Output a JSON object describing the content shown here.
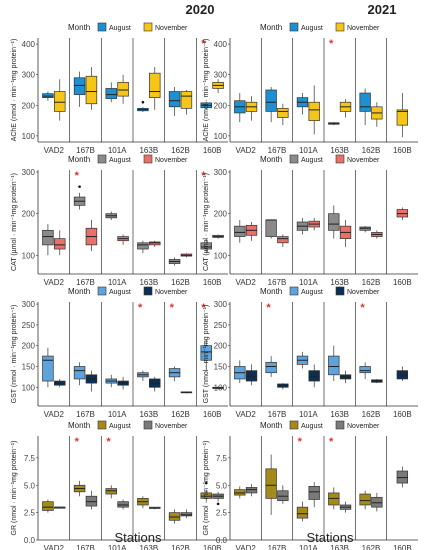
{
  "titles": {
    "left": "2020",
    "right": "2021"
  },
  "x_axis_title": "Stations",
  "legend_title": "Month",
  "months": [
    "August",
    "November"
  ],
  "stations": [
    "VAD2",
    "167B",
    "101A",
    "163B",
    "162B",
    "160B"
  ],
  "colors": {
    "AChE": [
      "#1e8fd0",
      "#f5c518"
    ],
    "CAT": [
      "#8a8a8a",
      "#e8706a"
    ],
    "GST": [
      "#5fa3dc",
      "#0b2f55"
    ],
    "GR": [
      "#a58a1a",
      "#7a7a7a"
    ],
    "significance": "#e03030"
  },
  "chart_data": [
    {
      "type": "box",
      "year": "2020",
      "enzyme": "AChE",
      "ylabel": "AChE (nmol · min⁻¹mg protein⁻¹)",
      "ylim": [
        80,
        420
      ],
      "ticks": [
        100,
        200,
        300,
        400
      ],
      "boxes": [
        {
          "station": "VAD2",
          "aug": [
            215,
            225,
            230,
            238,
            245
          ],
          "nov": [
            150,
            180,
            210,
            245,
            285
          ]
        },
        {
          "station": "167B",
          "aug": [
            195,
            235,
            265,
            290,
            310
          ],
          "nov": [
            185,
            205,
            245,
            295,
            325
          ]
        },
        {
          "station": "101A",
          "aug": [
            210,
            222,
            235,
            255,
            275
          ],
          "nov": [
            205,
            230,
            250,
            275,
            300
          ]
        },
        {
          "station": "163B",
          "aug": [
            178,
            182,
            186,
            190,
            195
          ],
          "nov": [
            185,
            225,
            245,
            305,
            325
          ],
          "aug_outliers": [
            210
          ]
        },
        {
          "station": "162B",
          "aug": [
            165,
            195,
            215,
            245,
            260
          ],
          "nov": [
            170,
            190,
            230,
            245,
            250
          ]
        },
        {
          "station": "160B",
          "aug": [
            188,
            192,
            200,
            208,
            212
          ],
          "nov": [
            240,
            255,
            265,
            275,
            285
          ],
          "sig": true
        }
      ]
    },
    {
      "type": "box",
      "year": "2021",
      "enzyme": "AChE",
      "ylabel": "AChE (nmol · min⁻¹mg protein⁻¹)",
      "ylim": [
        80,
        420
      ],
      "ticks": [
        100,
        200,
        300,
        400
      ],
      "boxes": [
        {
          "station": "VAD2",
          "aug": [
            145,
            175,
            195,
            215,
            240
          ],
          "nov": [
            150,
            180,
            195,
            210,
            230
          ]
        },
        {
          "station": "167B",
          "aug": [
            145,
            180,
            210,
            250,
            260
          ],
          "nov": [
            135,
            160,
            180,
            190,
            205
          ]
        },
        {
          "station": "101A",
          "aug": [
            170,
            195,
            210,
            225,
            240
          ],
          "nov": [
            105,
            150,
            185,
            210,
            265
          ]
        },
        {
          "station": "163B",
          "aug": [
            135,
            138,
            140,
            143,
            145
          ],
          "nov": [
            160,
            180,
            195,
            210,
            220
          ],
          "sig": true
        },
        {
          "station": "162B",
          "aug": [
            135,
            180,
            195,
            240,
            255
          ],
          "nov": [
            130,
            155,
            175,
            195,
            210
          ]
        },
        {
          "station": "160B",
          "aug": null,
          "nov": [
            95,
            135,
            180,
            185,
            240
          ]
        }
      ]
    },
    {
      "type": "box",
      "year": "2020",
      "enzyme": "CAT",
      "ylabel": "CAT (µmol · min⁻¹mg protein⁻¹)",
      "ylim": [
        55,
        305
      ],
      "ticks": [
        100,
        200,
        300
      ],
      "boxes": [
        {
          "station": "VAD2",
          "aug": [
            100,
            125,
            145,
            160,
            175
          ],
          "nov": [
            100,
            115,
            125,
            140,
            160
          ]
        },
        {
          "station": "167B",
          "aug": [
            210,
            220,
            230,
            240,
            250
          ],
          "nov": [
            110,
            125,
            145,
            165,
            185
          ],
          "aug_outliers": [
            265
          ],
          "sig": true
        },
        {
          "station": "101A",
          "aug": [
            185,
            190,
            195,
            200,
            205
          ],
          "nov": [
            125,
            135,
            140,
            145,
            150
          ]
        },
        {
          "station": "163B",
          "aug": [
            105,
            115,
            125,
            130,
            135
          ],
          "nov": [
            120,
            125,
            130,
            132,
            135
          ]
        },
        {
          "station": "162B",
          "aug": [
            75,
            80,
            85,
            90,
            95
          ],
          "nov": [
            95,
            98,
            100,
            103,
            105
          ]
        },
        {
          "station": "160B",
          "aug": [
            105,
            115,
            120,
            130,
            140
          ],
          "nov": [
            140,
            143,
            145,
            148,
            150
          ],
          "sig": true
        }
      ]
    },
    {
      "type": "box",
      "year": "2021",
      "enzyme": "CAT",
      "ylabel": "CAT (µmol · min⁻¹mg protein⁻¹)",
      "ylim": [
        55,
        305
      ],
      "ticks": [
        100,
        200,
        300
      ],
      "boxes": [
        {
          "station": "VAD2",
          "aug": [
            130,
            145,
            155,
            170,
            185
          ],
          "nov": [
            135,
            148,
            160,
            172,
            180
          ]
        },
        {
          "station": "167B",
          "aug": [
            140,
            145,
            185,
            185,
            185
          ],
          "nov": [
            120,
            130,
            140,
            145,
            150
          ]
        },
        {
          "station": "101A",
          "aug": [
            150,
            160,
            170,
            180,
            190
          ],
          "nov": [
            160,
            168,
            175,
            182,
            190
          ]
        },
        {
          "station": "163B",
          "aug": [
            140,
            160,
            175,
            200,
            220
          ],
          "nov": [
            120,
            140,
            155,
            170,
            185
          ]
        },
        {
          "station": "162B",
          "aug": [
            155,
            160,
            165,
            168,
            170
          ],
          "nov": [
            140,
            145,
            150,
            155,
            160
          ]
        },
        {
          "station": "160B",
          "aug": null,
          "nov": [
            185,
            192,
            200,
            210,
            215
          ]
        }
      ]
    },
    {
      "type": "box",
      "year": "2020",
      "enzyme": "GST",
      "ylabel": "GST (nmol · min⁻¹mg protein⁻¹)",
      "ylim": [
        55,
        305
      ],
      "ticks": [
        100,
        150,
        200,
        250,
        300
      ],
      "boxes": [
        {
          "station": "VAD2",
          "aug": [
            100,
            115,
            165,
            175,
            195
          ],
          "nov": [
            100,
            105,
            110,
            115,
            120
          ]
        },
        {
          "station": "167B",
          "aug": [
            105,
            120,
            140,
            150,
            160
          ],
          "nov": [
            90,
            110,
            120,
            130,
            140
          ]
        },
        {
          "station": "101A",
          "aug": [
            100,
            110,
            115,
            120,
            130
          ],
          "nov": [
            95,
            105,
            110,
            115,
            125
          ]
        },
        {
          "station": "163B",
          "aug": [
            115,
            125,
            130,
            135,
            140
          ],
          "nov": [
            90,
            100,
            110,
            120,
            125
          ],
          "sig": true
        },
        {
          "station": "162B",
          "aug": [
            115,
            125,
            135,
            145,
            150
          ],
          "nov": [
            85,
            87,
            88,
            89,
            90
          ],
          "sig": true
        },
        {
          "station": "160B",
          "aug": [
            140,
            165,
            185,
            200,
            215
          ],
          "nov": [
            95,
            97,
            98,
            100,
            102
          ],
          "sig": true
        }
      ]
    },
    {
      "type": "box",
      "year": "2021",
      "enzyme": "GST",
      "ylabel": "GST (nmol · min⁻¹mg protein⁻¹)",
      "ylim": [
        55,
        305
      ],
      "ticks": [
        100,
        150,
        200,
        250,
        300
      ],
      "boxes": [
        {
          "station": "VAD2",
          "aug": [
            110,
            120,
            135,
            150,
            165
          ],
          "nov": [
            105,
            115,
            125,
            140,
            155
          ]
        },
        {
          "station": "167B",
          "aug": [
            125,
            135,
            150,
            160,
            175
          ],
          "nov": [
            95,
            100,
            105,
            108,
            110
          ],
          "sig": true
        },
        {
          "station": "101A",
          "aug": [
            145,
            155,
            165,
            175,
            185
          ],
          "nov": [
            100,
            115,
            125,
            140,
            155
          ]
        },
        {
          "station": "163B",
          "aug": [
            115,
            130,
            150,
            175,
            200
          ],
          "nov": [
            110,
            120,
            125,
            130,
            140
          ]
        },
        {
          "station": "162B",
          "aug": [
            120,
            135,
            140,
            150,
            160
          ],
          "nov": [
            110,
            112,
            115,
            118,
            120
          ],
          "sig": true
        },
        {
          "station": "160B",
          "aug": null,
          "nov": [
            115,
            120,
            130,
            140,
            150
          ]
        }
      ]
    },
    {
      "type": "box",
      "year": "2020",
      "enzyme": "GR",
      "ylabel": "GR (nmol · min⁻¹mg protein⁻¹)",
      "ylim": [
        0,
        9.5
      ],
      "ticks": [
        0.0,
        2.5,
        5.0,
        7.5
      ],
      "boxes": [
        {
          "station": "VAD2",
          "aug": [
            2.5,
            2.7,
            3.0,
            3.5,
            3.7
          ],
          "nov": [
            2.9,
            2.9,
            3.0,
            3.0,
            3.0
          ]
        },
        {
          "station": "167B",
          "aug": [
            4.0,
            4.4,
            4.7,
            5.0,
            5.4
          ],
          "nov": [
            2.8,
            3.1,
            3.5,
            4.0,
            4.5
          ],
          "sig": true
        },
        {
          "station": "101A",
          "aug": [
            3.8,
            4.2,
            4.5,
            4.7,
            5.0
          ],
          "nov": [
            2.8,
            3.0,
            3.2,
            3.5,
            3.7
          ],
          "sig": true
        },
        {
          "station": "163B",
          "aug": [
            2.9,
            3.2,
            3.5,
            3.8,
            4.0
          ],
          "nov": [
            2.8,
            2.9,
            2.9,
            3.0,
            3.0
          ]
        },
        {
          "station": "162B",
          "aug": [
            1.5,
            1.8,
            2.1,
            2.5,
            2.8
          ],
          "nov": [
            2.0,
            2.2,
            2.3,
            2.5,
            2.8
          ]
        },
        {
          "station": "160B",
          "aug": [
            3.5,
            3.8,
            4.0,
            4.3,
            4.6
          ],
          "nov": [
            3.5,
            3.8,
            4.0,
            4.2,
            4.4
          ],
          "aug_outliers": [
            5.2
          ],
          "nov_outliers": [
            3.3
          ]
        }
      ]
    },
    {
      "type": "box",
      "year": "2021",
      "enzyme": "GR",
      "ylabel": "GR (nmol · min⁻¹mg protein⁻¹)",
      "ylim": [
        0,
        9.5
      ],
      "ticks": [
        0.0,
        2.5,
        5.0,
        7.5
      ],
      "boxes": [
        {
          "station": "VAD2",
          "aug": [
            3.8,
            4.1,
            4.3,
            4.6,
            4.9
          ],
          "nov": [
            4.0,
            4.3,
            4.6,
            4.8,
            5.1
          ]
        },
        {
          "station": "167B",
          "aug": [
            2.3,
            3.8,
            5.0,
            6.5,
            7.8
          ],
          "nov": [
            3.3,
            3.6,
            4.0,
            4.5,
            5.0
          ]
        },
        {
          "station": "101A",
          "aug": [
            1.7,
            2.0,
            2.4,
            3.0,
            3.5
          ],
          "nov": [
            3.0,
            3.7,
            4.4,
            4.9,
            5.3
          ],
          "sig": true
        },
        {
          "station": "163B",
          "aug": [
            2.8,
            3.2,
            3.8,
            4.3,
            4.8
          ],
          "nov": [
            2.5,
            2.8,
            3.0,
            3.2,
            3.5
          ],
          "sig": true
        },
        {
          "station": "162B",
          "aug": [
            2.8,
            3.2,
            3.6,
            4.2,
            4.5
          ],
          "nov": [
            2.6,
            3.0,
            3.4,
            3.9,
            4.3
          ]
        },
        {
          "station": "160B",
          "aug": null,
          "nov": [
            4.8,
            5.2,
            5.7,
            6.3,
            6.7
          ]
        }
      ]
    }
  ]
}
